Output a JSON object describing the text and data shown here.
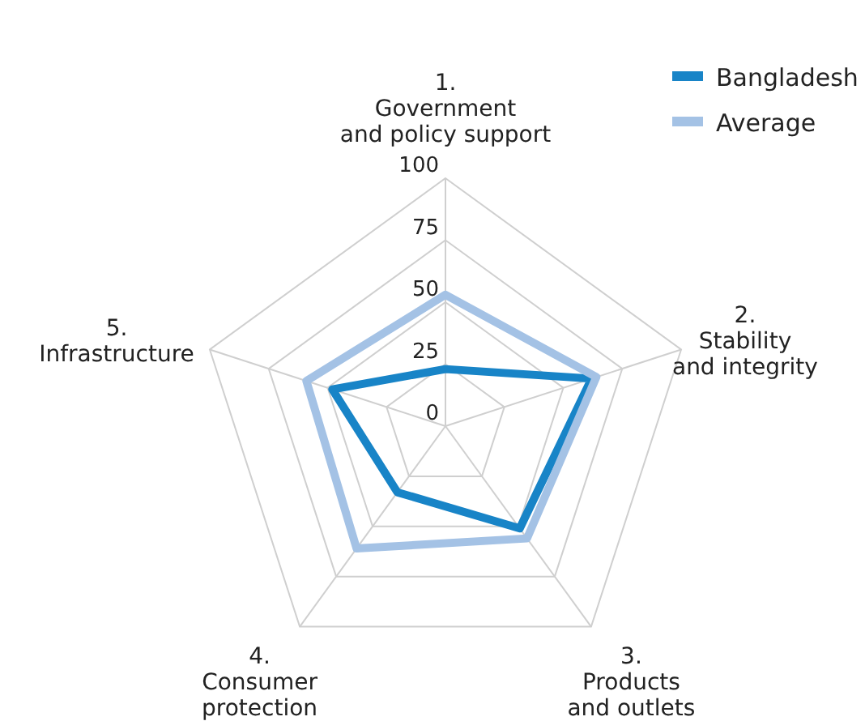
{
  "chart_data": {
    "type": "radar",
    "categories": [
      "1.\nGovernment\nand policy support",
      "2.\nStability\nand integrity",
      "3.\nProducts\nand outlets",
      "4.\nConsumer\nprotection",
      "5.\nInfrastructure"
    ],
    "series": [
      {
        "name": "Bangladesh",
        "color": "#1884c7",
        "values": [
          23,
          62,
          51,
          33,
          48
        ]
      },
      {
        "name": "Average",
        "color": "#a4c2e5",
        "values": [
          53,
          64,
          56,
          61,
          59
        ]
      }
    ],
    "ylim": [
      0,
      100
    ],
    "yticks": [
      0,
      25,
      50,
      75,
      100
    ],
    "grid": true,
    "legend": "top right"
  }
}
